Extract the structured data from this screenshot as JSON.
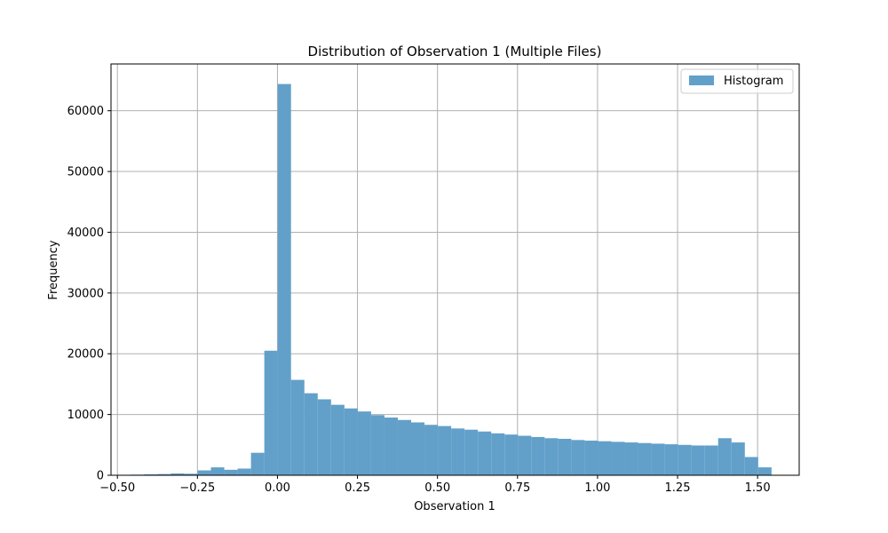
{
  "chart_data": {
    "type": "bar",
    "title": "Distribution of Observation 1 (Multiple Files)",
    "xlabel": "Observation 1",
    "ylabel": "Frequency",
    "xlim": [
      -0.52,
      1.63
    ],
    "ylim": [
      0,
      67700
    ],
    "xticks": [
      -0.5,
      -0.25,
      0.0,
      0.25,
      0.5,
      0.75,
      1.0,
      1.25,
      1.5
    ],
    "xtick_labels": [
      "−0.50",
      "−0.25",
      "0.00",
      "0.25",
      "0.50",
      "0.75",
      "1.00",
      "1.25",
      "1.50"
    ],
    "yticks": [
      0,
      10000,
      20000,
      30000,
      40000,
      50000,
      60000
    ],
    "ytick_labels": [
      "0",
      "10000",
      "20000",
      "30000",
      "40000",
      "50000",
      "60000"
    ],
    "grid": true,
    "legend": {
      "position": "upper-right",
      "entries": [
        {
          "label": "Histogram",
          "color": "#62a0ca"
        }
      ]
    },
    "bar_color": "#62a0ca",
    "bin_width": 0.0417,
    "bin_starts": [
      -0.458,
      -0.4163,
      -0.3746,
      -0.3329,
      -0.2912,
      -0.2495,
      -0.2078,
      -0.1661,
      -0.1244,
      -0.0827,
      -0.041,
      0.0007,
      0.0424,
      0.0841,
      0.1258,
      0.1675,
      0.2092,
      0.2509,
      0.2926,
      0.3343,
      0.376,
      0.4177,
      0.4594,
      0.5011,
      0.5428,
      0.5845,
      0.6262,
      0.6679,
      0.7096,
      0.7513,
      0.793,
      0.8347,
      0.8764,
      0.9181,
      0.9598,
      1.0015,
      1.0432,
      1.0849,
      1.1266,
      1.1683,
      1.21,
      1.2517,
      1.2934,
      1.3351,
      1.3768,
      1.4185,
      1.4602,
      1.5019
    ],
    "values": [
      100,
      150,
      200,
      300,
      250,
      800,
      1300,
      900,
      1100,
      3700,
      20500,
      64400,
      15700,
      13500,
      12500,
      11600,
      11000,
      10500,
      9900,
      9500,
      9100,
      8700,
      8300,
      8100,
      7700,
      7500,
      7200,
      6900,
      6700,
      6500,
      6300,
      6100,
      6000,
      5800,
      5700,
      5600,
      5500,
      5400,
      5300,
      5200,
      5100,
      5000,
      4900,
      4900,
      6100,
      5400,
      3000,
      1300
    ]
  }
}
